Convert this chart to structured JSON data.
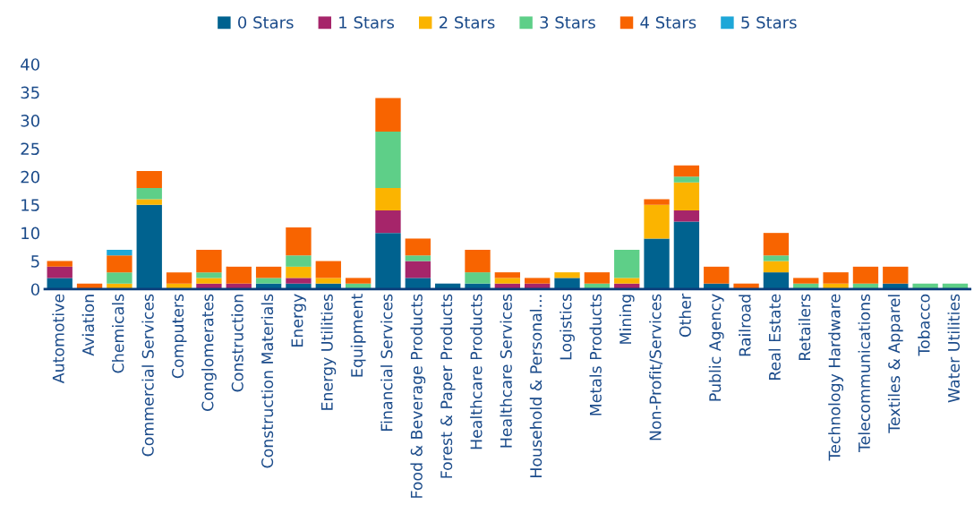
{
  "chart_data": {
    "type": "bar",
    "stacked": true,
    "legend": "top",
    "grid": false,
    "categories": [
      "Automotive",
      "Aviation",
      "Chemicals",
      "Commercial Services",
      "Computers",
      "Conglomerates",
      "Construction",
      "Construction Materials",
      "Energy",
      "Energy Utilities",
      "Equipment",
      "Financial Services",
      "Food & Beverage Products",
      "Forest & Paper Products",
      "Healthcare Products",
      "Healthcare Services",
      "Household & Personal...",
      "Logistics",
      "Metals Products",
      "Mining",
      "Non-Profit/Services",
      "Other",
      "Public Agency",
      "Railroad",
      "Real Estate",
      "Retailers",
      "Technology Hardware",
      "Telecommunications",
      "Textiles & Apparel",
      "Tobacco",
      "Water Utilities"
    ],
    "series": [
      {
        "name": "0 Stars",
        "color": "#00628f",
        "values": [
          2,
          0,
          0,
          15,
          0,
          0,
          0,
          1,
          1,
          1,
          0,
          10,
          2,
          1,
          1,
          0,
          0,
          2,
          0,
          0,
          9,
          12,
          1,
          0,
          3,
          0,
          0,
          0,
          1,
          0,
          0
        ]
      },
      {
        "name": "1 Stars",
        "color": "#a6256a",
        "values": [
          2,
          0,
          0,
          0,
          0,
          1,
          1,
          0,
          1,
          0,
          0,
          4,
          3,
          0,
          0,
          1,
          1,
          0,
          0,
          1,
          0,
          2,
          0,
          0,
          0,
          0,
          0,
          0,
          0,
          0,
          0
        ]
      },
      {
        "name": "2 Stars",
        "color": "#fbb400",
        "values": [
          0,
          0,
          1,
          1,
          1,
          1,
          0,
          0,
          2,
          1,
          0,
          4,
          0,
          0,
          0,
          1,
          0,
          1,
          0,
          1,
          6,
          5,
          0,
          0,
          2,
          0,
          1,
          0,
          0,
          0,
          0
        ]
      },
      {
        "name": "3 Stars",
        "color": "#5ecf88",
        "values": [
          0,
          0,
          2,
          2,
          0,
          1,
          0,
          1,
          2,
          0,
          1,
          10,
          1,
          0,
          2,
          0,
          0,
          0,
          1,
          5,
          0,
          1,
          0,
          0,
          1,
          1,
          0,
          1,
          0,
          1,
          1
        ]
      },
      {
        "name": "4 Stars",
        "color": "#f86400",
        "values": [
          1,
          1,
          3,
          3,
          2,
          4,
          3,
          2,
          5,
          3,
          1,
          6,
          3,
          0,
          4,
          1,
          1,
          0,
          2,
          0,
          1,
          2,
          3,
          1,
          4,
          1,
          2,
          3,
          3,
          0,
          0
        ]
      },
      {
        "name": "5 Stars",
        "color": "#1ea7d8",
        "values": [
          0,
          0,
          1,
          0,
          0,
          0,
          0,
          0,
          0,
          0,
          0,
          0,
          0,
          0,
          0,
          0,
          0,
          0,
          0,
          0,
          0,
          0,
          0,
          0,
          0,
          0,
          0,
          0,
          0,
          0,
          0
        ]
      }
    ],
    "ylim": [
      0,
      40
    ],
    "yticks": [
      0,
      5,
      10,
      15,
      20,
      25,
      30,
      35,
      40
    ]
  }
}
